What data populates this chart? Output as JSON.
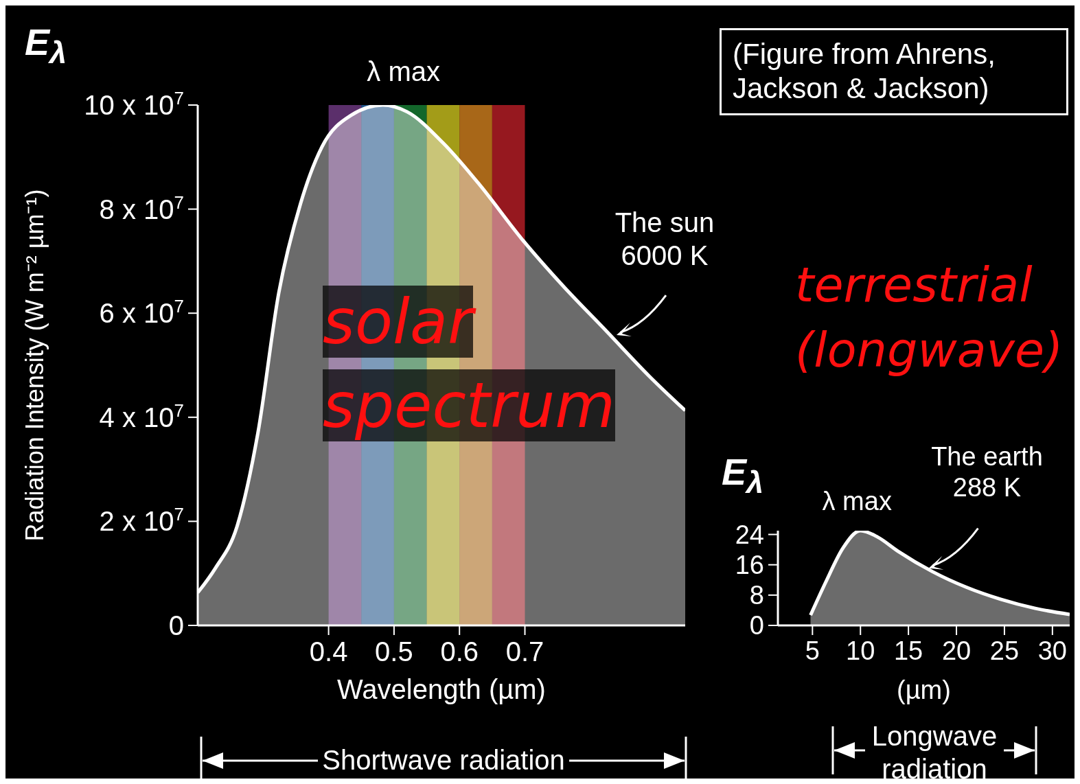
{
  "chart_data": [
    {
      "type": "area",
      "ylabel": "Radiation Intensity (W m⁻² µm⁻¹)",
      "xlabel": "Wavelength (µm)",
      "x": [
        0.2,
        0.227,
        0.26,
        0.292,
        0.324,
        0.357,
        0.39,
        0.434,
        0.483,
        0.52,
        0.575,
        0.63,
        0.695,
        0.76,
        0.825,
        0.89,
        0.945
      ],
      "series": [
        {
          "color": "#ffffff",
          "values": [
            6300000,
            11000000,
            19000000,
            37000000,
            64000000,
            81000000,
            92000000,
            98000000,
            100000000,
            98700000,
            92700000,
            84800000,
            74300000,
            65000000,
            56500000,
            47900000,
            41300000
          ]
        }
      ],
      "xlim": [
        0.2,
        0.945
      ],
      "xticks": [
        0.4,
        0.5,
        0.6,
        0.7
      ],
      "ylim": [
        0,
        100000000
      ],
      "yticks": [
        0,
        {
          "value": 20000000,
          "label": "2 x 10$^{7}$"
        },
        {
          "value": 40000000,
          "label": "4 x 10$^{7}$"
        },
        {
          "value": 60000000,
          "label": "6 x 10$^{7}$"
        },
        {
          "value": 80000000,
          "label": "8 x 10$^{7}$"
        },
        {
          "value": 100000000,
          "label": "10 x 10$^{7}$"
        }
      ],
      "bands": [
        {
          "axis": "x",
          "from": 0.4,
          "to": 0.45,
          "color": "#7a3f8f"
        },
        {
          "axis": "x",
          "from": 0.45,
          "to": 0.5,
          "color": "#2a6fb5"
        },
        {
          "axis": "x",
          "from": 0.5,
          "to": 0.55,
          "color": "#1a8a3a"
        },
        {
          "axis": "x",
          "from": 0.55,
          "to": 0.6,
          "color": "#d9d020"
        },
        {
          "axis": "x",
          "from": 0.6,
          "to": 0.65,
          "color": "#e08a20"
        },
        {
          "axis": "x",
          "from": 0.65,
          "to": 0.7,
          "color": "#c8202a"
        }
      ],
      "grid": false,
      "annotations": [
        "E$_{λ}$",
        {
          "text": "λ max",
          "x": 0.483,
          "y": 100000000
        },
        {
          "text": "The sun 6000 K",
          "x": 0.84,
          "y": 55800000
        },
        "(Figure from Ahrens, Jackson & Jackson)",
        "solar spectrum",
        "Shortwave radiation"
      ]
    },
    {
      "type": "area",
      "xlabel": "(µm)",
      "x": [
        4.8,
        6.4,
        8.2,
        10,
        11.8,
        13.9,
        17.5,
        21.1,
        24.6,
        28.2,
        31.8
      ],
      "series": [
        {
          "color": "#ffffff",
          "values": [
            2.7,
            11.5,
            20.5,
            25,
            23.3,
            19.6,
            14.2,
            10,
            6.9,
            4.5,
            2.9
          ]
        }
      ],
      "xlim": [
        1.4,
        31.8
      ],
      "xticks": [
        5,
        10,
        15,
        20,
        25,
        30
      ],
      "ylim": [
        0,
        25
      ],
      "yticks": [
        0,
        8,
        16,
        24
      ],
      "grid": false,
      "annotations": [
        "E$_{λ}$",
        {
          "text": "λ max",
          "x": 10,
          "y": 25
        },
        {
          "text": "The earth 288 K",
          "x": 17.1,
          "y": 15.1
        },
        "terrestrial (longwave)",
        "Longwave radiation"
      ]
    }
  ]
}
